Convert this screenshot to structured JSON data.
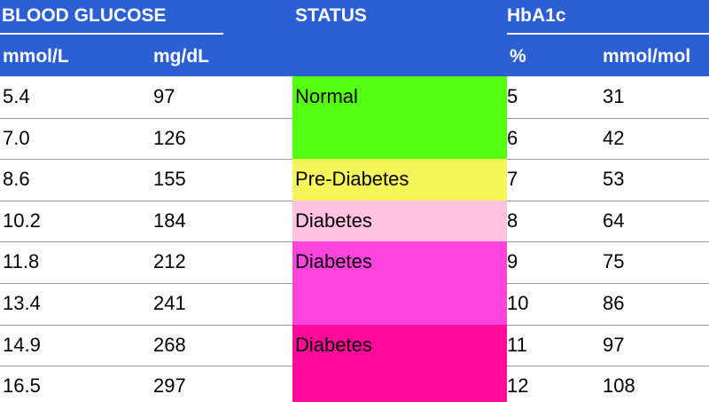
{
  "header": {
    "groups": [
      "BLOOD GLUCOSE",
      "STATUS",
      "HbA1c"
    ],
    "units": [
      "mmol/L",
      "mg/dL",
      "%",
      "mmol/mol"
    ]
  },
  "table": {
    "rows": [
      [
        "5.4",
        "97",
        "5",
        "31"
      ],
      [
        "7.0",
        "126",
        "6",
        "42"
      ],
      [
        "8.6",
        "155",
        "7",
        "53"
      ],
      [
        "10.2",
        "184",
        "8",
        "64"
      ],
      [
        "11.8",
        "212",
        "9",
        "75"
      ],
      [
        "13.4",
        "241",
        "10",
        "86"
      ],
      [
        "14.9",
        "268",
        "11",
        "97"
      ],
      [
        "16.5",
        "297",
        "12",
        "108"
      ]
    ],
    "status": [
      "Normal",
      null,
      "Pre-Diabetes",
      "Diabetes",
      "Diabetes",
      null,
      "Diabetes",
      null
    ]
  }
}
